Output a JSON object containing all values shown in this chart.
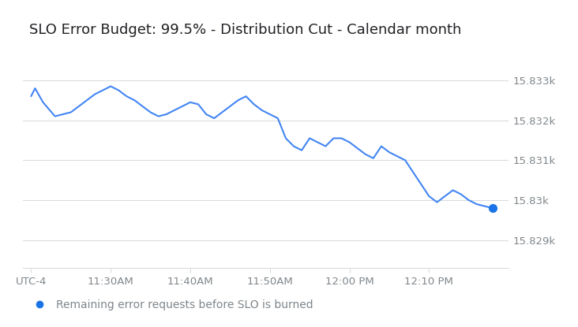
{
  "title": "SLO Error Budget: 99.5% - Distribution Cut - Calendar month",
  "title_fontsize": 13,
  "line_color": "#4285f4",
  "background_color": "#ffffff",
  "grid_color": "#dadce0",
  "tick_color": "#80868b",
  "legend_label": "Remaining error requests before SLO is burned",
  "legend_marker_color": "#1a73e8",
  "y_ticks": [
    15829,
    15830,
    15831,
    15832,
    15833
  ],
  "y_labels": [
    "15.829k",
    "15.83k",
    "15.831k",
    "15.832k",
    "15.833k"
  ],
  "ylim": [
    15828.3,
    15833.7
  ],
  "x_tick_positions": [
    0,
    10,
    20,
    30,
    40,
    50
  ],
  "x_tick_labels": [
    "UTC-4",
    "11:30AM",
    "11:40AM",
    "11:50AM",
    "12:00 PM",
    "12:10 PM"
  ],
  "xlim": [
    -1,
    60
  ],
  "x_data": [
    0,
    0.5,
    1.5,
    3,
    4,
    5,
    6,
    7,
    8,
    9,
    10,
    11,
    12,
    13,
    14,
    15,
    16,
    17,
    18,
    19,
    20,
    21,
    22,
    23,
    24,
    25,
    26,
    27,
    28,
    29,
    30,
    31,
    32,
    33,
    34,
    35,
    36,
    37,
    38,
    39,
    40,
    41,
    42,
    43,
    44,
    45,
    46,
    47,
    48,
    49,
    50,
    51,
    52,
    53,
    54,
    55,
    56,
    57,
    58
  ],
  "y_data": [
    15832.6,
    15832.8,
    15832.45,
    15832.1,
    15832.15,
    15832.2,
    15832.35,
    15832.5,
    15832.65,
    15832.75,
    15832.85,
    15832.75,
    15832.6,
    15832.5,
    15832.35,
    15832.2,
    15832.1,
    15832.15,
    15832.25,
    15832.35,
    15832.45,
    15832.4,
    15832.15,
    15832.05,
    15832.2,
    15832.35,
    15832.5,
    15832.6,
    15832.4,
    15832.25,
    15832.15,
    15832.05,
    15831.55,
    15831.35,
    15831.25,
    15831.55,
    15831.45,
    15831.35,
    15831.55,
    15831.55,
    15831.45,
    15831.3,
    15831.15,
    15831.05,
    15831.35,
    15831.2,
    15831.1,
    15831.0,
    15830.7,
    15830.4,
    15830.1,
    15829.95,
    15830.1,
    15830.25,
    15830.15,
    15830.0,
    15829.9,
    15829.85,
    15829.8
  ]
}
